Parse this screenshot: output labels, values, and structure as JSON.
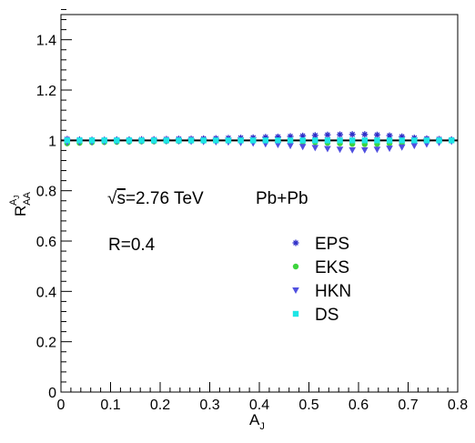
{
  "chart_data": {
    "type": "scatter",
    "xlabel_main": "A",
    "xlabel_sub": "J",
    "ylabel_main": "R",
    "ylabel_sub": "AA",
    "ylabel_sup": "A",
    "ylabel_sup_sub": "J",
    "xlim": [
      0,
      0.8
    ],
    "ylim": [
      0,
      1.5
    ],
    "x_ticks": [
      {
        "value": 0,
        "label": "0"
      },
      {
        "value": 0.1,
        "label": "0.1"
      },
      {
        "value": 0.2,
        "label": "0.2"
      },
      {
        "value": 0.3,
        "label": "0.3"
      },
      {
        "value": 0.4,
        "label": "0.4"
      },
      {
        "value": 0.5,
        "label": "0.5"
      },
      {
        "value": 0.6,
        "label": "0.6"
      },
      {
        "value": 0.7,
        "label": "0.7"
      },
      {
        "value": 0.8,
        "label": "0.8"
      }
    ],
    "y_ticks": [
      {
        "value": 0,
        "label": "0"
      },
      {
        "value": 0.2,
        "label": "0.2"
      },
      {
        "value": 0.4,
        "label": "0.4"
      },
      {
        "value": 0.6,
        "label": "0.6"
      },
      {
        "value": 0.8,
        "label": "0.8"
      },
      {
        "value": 1.0,
        "label": "1"
      },
      {
        "value": 1.2,
        "label": "1.2"
      },
      {
        "value": 1.4,
        "label": "1.4"
      }
    ],
    "reference_line": 1.0,
    "annotations": {
      "energy_sqrt": "√",
      "energy_s": "s",
      "energy_rest": "=2.76 TeV",
      "system": "Pb+Pb",
      "radius": "R=0.4"
    },
    "legend_position": "middle-right",
    "x": [
      0.0125,
      0.0375,
      0.0625,
      0.0875,
      0.1125,
      0.1375,
      0.1625,
      0.1875,
      0.2125,
      0.2375,
      0.2625,
      0.2875,
      0.3125,
      0.3375,
      0.3625,
      0.3875,
      0.4125,
      0.4375,
      0.4625,
      0.4875,
      0.5125,
      0.5375,
      0.5625,
      0.5875,
      0.6125,
      0.6375,
      0.6625,
      0.6875,
      0.7125,
      0.7375,
      0.7625,
      0.7875
    ],
    "series": [
      {
        "name": "EPS",
        "marker": "star",
        "color": "#2e2ec8",
        "values": [
          1.005,
          1.003,
          1.002,
          1.002,
          1.003,
          1.003,
          1.004,
          1.004,
          1.005,
          1.006,
          1.006,
          1.007,
          1.008,
          1.009,
          1.01,
          1.011,
          1.013,
          1.014,
          1.016,
          1.018,
          1.02,
          1.022,
          1.023,
          1.024,
          1.024,
          1.022,
          1.019,
          1.015,
          1.01,
          1.007,
          1.005,
          1.003
        ]
      },
      {
        "name": "EKS",
        "marker": "circle",
        "color": "#3dd43d",
        "values": [
          0.988,
          0.99,
          0.992,
          0.993,
          0.994,
          0.995,
          0.996,
          0.996,
          0.997,
          0.997,
          0.998,
          0.998,
          0.998,
          0.998,
          0.998,
          0.998,
          0.997,
          0.996,
          0.995,
          0.994,
          0.992,
          0.99,
          0.988,
          0.986,
          0.985,
          0.986,
          0.988,
          0.99,
          0.993,
          0.995,
          0.997,
          0.999
        ]
      },
      {
        "name": "HKN",
        "marker": "triangle-down",
        "color": "#5050e0",
        "values": [
          0.992,
          0.993,
          0.994,
          0.995,
          0.996,
          0.996,
          0.997,
          0.997,
          0.997,
          0.997,
          0.996,
          0.995,
          0.994,
          0.993,
          0.991,
          0.989,
          0.986,
          0.983,
          0.979,
          0.975,
          0.971,
          0.967,
          0.964,
          0.962,
          0.962,
          0.964,
          0.968,
          0.973,
          0.979,
          0.985,
          0.991,
          0.996
        ]
      },
      {
        "name": "DS",
        "marker": "square",
        "color": "#1ee6e6",
        "values": [
          1.0,
          1.0,
          1.0,
          1.0,
          1.0,
          1.0,
          1.0,
          1.0,
          1.0,
          1.0,
          1.0,
          1.0,
          1.0,
          1.0,
          1.0,
          1.0,
          1.0,
          1.0,
          1.0,
          1.0,
          1.0,
          1.0,
          1.0,
          1.0,
          1.0,
          1.0,
          1.0,
          1.0,
          1.0,
          1.0,
          1.0,
          1.0
        ]
      }
    ]
  }
}
